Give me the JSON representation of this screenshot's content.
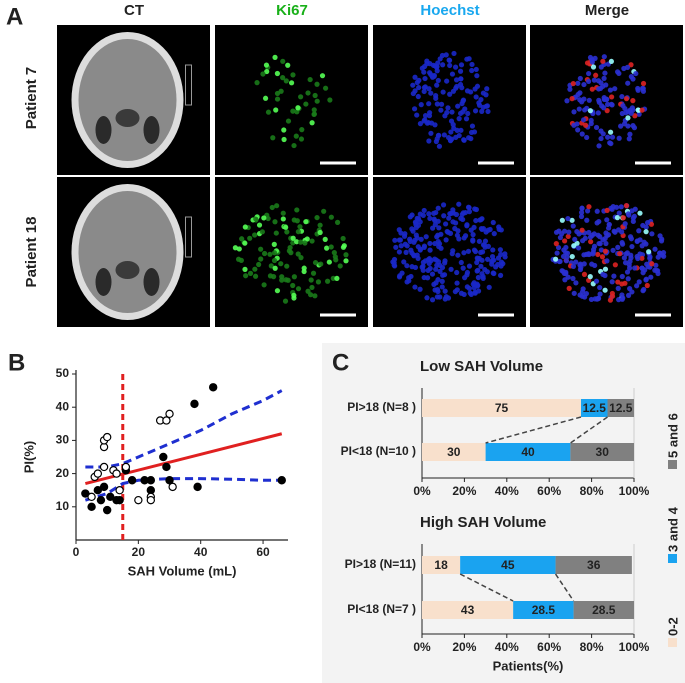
{
  "figure": {
    "panel_a": {
      "label": "A",
      "columns": [
        "CT",
        "Ki67",
        "Hoechst",
        "Merge"
      ],
      "rows": [
        "Patient 7",
        "Patient 18"
      ]
    },
    "panel_b_label": "B",
    "panel_c_label": "C"
  },
  "chart_data": [
    {
      "type": "scatter",
      "xlabel": "SAH Volume (mL)",
      "ylabel": "PI(%)",
      "xlim": [
        0,
        68
      ],
      "ylim": [
        0,
        50
      ],
      "xticks": [
        0,
        20,
        40,
        60
      ],
      "yticks": [
        10,
        20,
        30,
        40,
        50
      ],
      "series": [
        {
          "marker": "filled",
          "color": "#000000",
          "x": [
            3,
            5,
            7,
            8,
            9,
            10,
            11,
            13,
            14,
            16,
            18,
            22,
            24,
            24,
            28,
            29,
            30,
            38,
            39,
            44,
            66
          ],
          "values": [
            14,
            10,
            15,
            12,
            16,
            9,
            13,
            12,
            12,
            21,
            18,
            18,
            18,
            15,
            25,
            22,
            18,
            41,
            16,
            46,
            18
          ]
        },
        {
          "marker": "open",
          "color": "#000000",
          "x": [
            5,
            6,
            7,
            9,
            9,
            9,
            10,
            12,
            13,
            14,
            16,
            20,
            24,
            24,
            27,
            29,
            30,
            31
          ],
          "values": [
            13,
            19,
            20,
            22,
            28,
            30,
            31,
            21,
            20,
            15,
            22,
            12,
            13,
            12,
            36,
            36,
            38,
            16
          ]
        }
      ],
      "fit": {
        "color": "#e02020",
        "x": [
          3,
          66
        ],
        "values": [
          17,
          32
        ]
      },
      "ci": [
        {
          "color": "#1f2fd0",
          "x": [
            3,
            10,
            15,
            20,
            30,
            40,
            50,
            60,
            66
          ],
          "values": [
            22,
            22,
            23,
            25,
            29,
            33,
            38,
            42,
            45
          ]
        },
        {
          "color": "#1f2fd0",
          "x": [
            3,
            10,
            15,
            20,
            30,
            40,
            50,
            60,
            66
          ],
          "values": [
            12,
            14,
            17,
            18,
            18.5,
            18.5,
            18.3,
            18,
            18
          ]
        }
      ],
      "threshold": {
        "x": 15,
        "color": "#e02020"
      }
    },
    {
      "type": "stacked_barh",
      "title": "Low SAH Volume",
      "categories": [
        "PI>18 (N=8 )",
        "PI<18 (N=10 )"
      ],
      "series": [
        {
          "name": "0-2",
          "color": "#f8e0cc",
          "values": [
            75,
            30
          ]
        },
        {
          "name": "3 and 4",
          "color": "#1aa3f0",
          "values": [
            12.5,
            40
          ]
        },
        {
          "name": "5 and 6",
          "color": "#808080",
          "values": [
            12.5,
            30
          ]
        }
      ],
      "xlim": [
        0,
        100
      ],
      "xticks": [
        {
          "value": 0,
          "label": "0%"
        },
        {
          "value": 20,
          "label": "20%"
        },
        {
          "value": 40,
          "label": "40%"
        },
        {
          "value": 60,
          "label": "60%"
        },
        {
          "value": 80,
          "label": "80%"
        },
        {
          "value": 100,
          "label": "100%"
        }
      ]
    },
    {
      "type": "stacked_barh",
      "title": "High SAH Volume",
      "xlabel": "Patients(%)",
      "categories": [
        "PI>18 (N=11)",
        "PI<18 (N=7 )"
      ],
      "series": [
        {
          "color": "#f8e0cc",
          "values": [
            18,
            43
          ]
        },
        {
          "color": "#1aa3f0",
          "values": [
            45,
            28.5
          ]
        },
        {
          "color": "#808080",
          "values": [
            36,
            28.5
          ]
        }
      ],
      "xlim": [
        0,
        100
      ],
      "xticks": [
        {
          "value": 0,
          "label": "0%"
        },
        {
          "value": 20,
          "label": "20%"
        },
        {
          "value": 40,
          "label": "40%"
        },
        {
          "value": 60,
          "label": "60%"
        },
        {
          "value": 80,
          "label": "80%"
        },
        {
          "value": 100,
          "label": "100%"
        }
      ]
    }
  ]
}
